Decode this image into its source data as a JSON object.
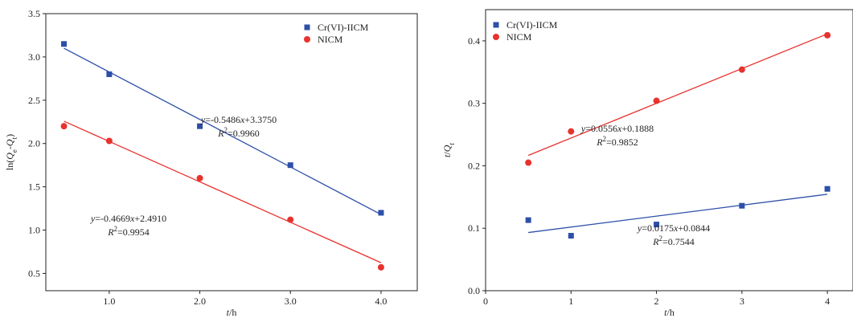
{
  "chart_data": [
    {
      "type": "scatter",
      "panel": "left",
      "xlabel": "t/h",
      "ylabel": "ln(Qe-Qt)",
      "xlim": [
        0.3,
        4.4
      ],
      "ylim": [
        0.3,
        3.5
      ],
      "x_ticks": [
        1.0,
        2.0,
        3.0,
        4.0
      ],
      "x_tick_labels": [
        "1.0",
        "2.0",
        "3.0",
        "4.0"
      ],
      "y_ticks": [
        0.5,
        1.0,
        1.5,
        2.0,
        2.5,
        3.0,
        3.5
      ],
      "y_tick_labels": [
        "0.5",
        "1.0",
        "1.5",
        "2.0",
        "2.5",
        "3.0",
        "3.5"
      ],
      "grid": false,
      "legend_position": "top-right",
      "series": [
        {
          "name": "Cr(VI)-IICM",
          "marker": "square",
          "color": "#2d4fa8",
          "x": [
            0.5,
            1.0,
            2.0,
            3.0,
            4.0
          ],
          "y": [
            3.15,
            2.8,
            2.2,
            1.75,
            1.2
          ],
          "fit": {
            "slope": -0.5486,
            "intercept": 3.375,
            "x_range": [
              0.5,
              4.0
            ]
          },
          "equation": "y=-0.5486x+3.3750",
          "r2": "R2=0.9960"
        },
        {
          "name": "NICM",
          "marker": "circle",
          "color": "#e8322e",
          "x": [
            0.5,
            1.0,
            2.0,
            3.0,
            4.0
          ],
          "y": [
            2.2,
            2.03,
            1.6,
            1.12,
            0.57
          ],
          "fit": {
            "slope": -0.4669,
            "intercept": 2.491,
            "x_range": [
              0.5,
              4.0
            ]
          },
          "equation": "y=-0.4669x+2.4910",
          "r2": "R2=0.9954"
        }
      ]
    },
    {
      "type": "scatter",
      "panel": "right",
      "xlabel": "t/h",
      "ylabel": "t/Qt",
      "xlim": [
        0,
        4.3
      ],
      "ylim": [
        0,
        0.45
      ],
      "x_ticks": [
        0,
        1,
        2,
        3,
        4
      ],
      "x_tick_labels": [
        "0",
        "1",
        "2",
        "3",
        "4"
      ],
      "y_ticks": [
        0.0,
        0.1,
        0.2,
        0.3,
        0.4
      ],
      "y_tick_labels": [
        "0.0",
        "0.1",
        "0.2",
        "0.3",
        "0.4"
      ],
      "grid": false,
      "legend_position": "top-left",
      "series": [
        {
          "name": "Cr(VI)-IICM",
          "marker": "square",
          "color": "#2d4fa8",
          "x": [
            0.5,
            1.0,
            2.0,
            3.0,
            4.0
          ],
          "y": [
            0.113,
            0.088,
            0.106,
            0.136,
            0.163
          ],
          "fit": {
            "slope": 0.0175,
            "intercept": 0.0844,
            "x_range": [
              0.5,
              4.0
            ]
          },
          "equation": "y=0.0175x+0.0844",
          "r2": "R2=0.7544"
        },
        {
          "name": "NICM",
          "marker": "circle",
          "color": "#e8322e",
          "x": [
            0.5,
            1.0,
            2.0,
            3.0,
            4.0
          ],
          "y": [
            0.205,
            0.255,
            0.304,
            0.354,
            0.409
          ],
          "fit": {
            "slope": 0.0556,
            "intercept": 0.1888,
            "x_range": [
              0.5,
              4.0
            ]
          },
          "equation": "y=0.0556x+0.1888",
          "r2": "R2=0.9852"
        }
      ]
    }
  ]
}
